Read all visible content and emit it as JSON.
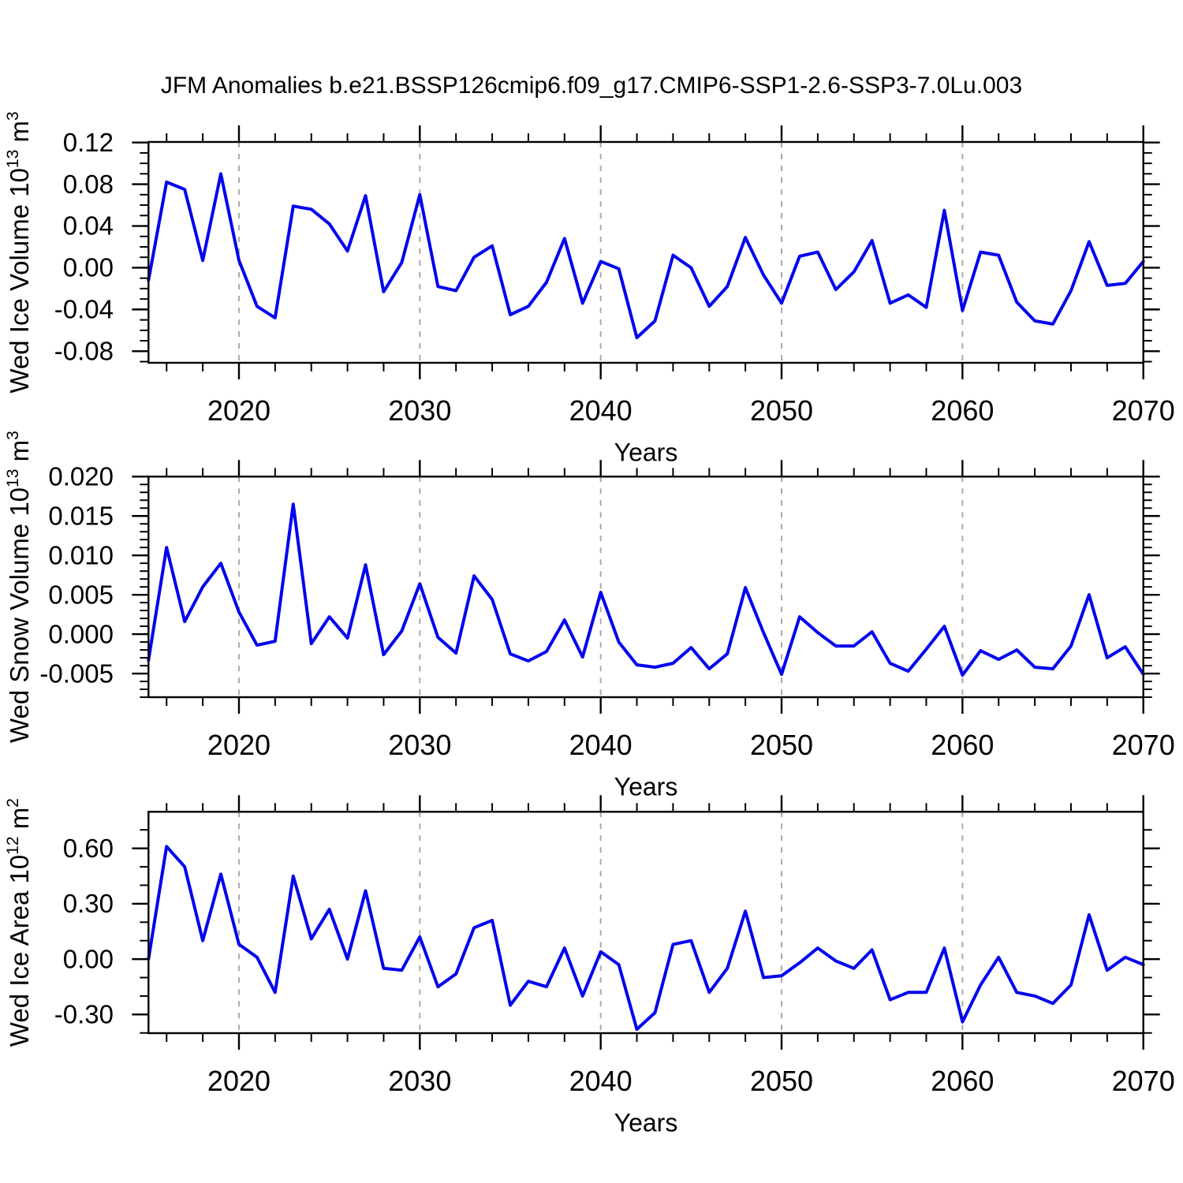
{
  "title": "JFM Anomalies b.e21.BSSP126cmip6.f09_g17.CMIP6-SSP1-2.6-SSP3-7.0Lu.003",
  "colors": {
    "line": "#0202ee",
    "grid": "#aaaaaa",
    "axis": "#000000",
    "text": "#000000",
    "background": "#ffffff"
  },
  "x_axis": {
    "label": "Years",
    "start": 2015,
    "end": 2070,
    "step": 1,
    "major_ticks": [
      2020,
      2030,
      2040,
      2050,
      2060,
      2070
    ],
    "minor_tick_step": 2,
    "decade_gridlines": [
      2020,
      2030,
      2040,
      2050,
      2060
    ]
  },
  "chart_data": [
    {
      "type": "line",
      "name": "wed-ice-volume",
      "ylabel_text": "Wed Ice Volume 10^13 m^3",
      "ylabel_parts": [
        {
          "t": "Wed Ice Volume 10",
          "sup": false
        },
        {
          "t": "13",
          "sup": true
        },
        {
          "t": " m",
          "sup": false
        },
        {
          "t": "3",
          "sup": true
        }
      ],
      "ylim": [
        -0.0911,
        0.1205
      ],
      "y_major_ticks": [
        {
          "v": 0.12,
          "label": "0.12"
        },
        {
          "v": 0.08,
          "label": "0.08"
        },
        {
          "v": 0.04,
          "label": "0.04"
        },
        {
          "v": 0.0,
          "label": "0.00"
        },
        {
          "v": -0.04,
          "label": "-0.04"
        },
        {
          "v": -0.08,
          "label": "-0.08"
        }
      ],
      "y_minor_step": 0.01,
      "x_years": {
        "start": 2015,
        "end": 2070,
        "step": 1
      },
      "values": [
        -0.012,
        0.082,
        0.075,
        0.007,
        0.09,
        0.007,
        -0.037,
        -0.048,
        0.059,
        0.056,
        0.042,
        0.016,
        0.069,
        -0.023,
        0.005,
        0.07,
        -0.018,
        -0.022,
        0.01,
        0.021,
        -0.045,
        -0.037,
        -0.014,
        0.028,
        -0.034,
        0.006,
        -0.001,
        -0.067,
        -0.051,
        0.012,
        0.0,
        -0.037,
        -0.018,
        0.029,
        -0.007,
        -0.034,
        0.011,
        0.015,
        -0.021,
        -0.004,
        0.026,
        -0.034,
        -0.026,
        -0.038,
        0.055,
        -0.041,
        0.015,
        0.012,
        -0.033,
        -0.051,
        -0.054,
        -0.022,
        0.025,
        -0.017,
        -0.015,
        0.006
      ]
    },
    {
      "type": "line",
      "name": "wed-snow-volume",
      "ylabel_text": "Wed Snow Volume 10^13 m^3",
      "ylabel_parts": [
        {
          "t": "Wed Snow Volume 10",
          "sup": false
        },
        {
          "t": "13",
          "sup": true
        },
        {
          "t": " m",
          "sup": false
        },
        {
          "t": "3",
          "sup": true
        }
      ],
      "ylim": [
        -0.008,
        0.02
      ],
      "y_major_ticks": [
        {
          "v": 0.02,
          "label": "0.020"
        },
        {
          "v": 0.015,
          "label": "0.015"
        },
        {
          "v": 0.01,
          "label": "0.010"
        },
        {
          "v": 0.005,
          "label": "0.005"
        },
        {
          "v": 0.0,
          "label": "0.000"
        },
        {
          "v": -0.005,
          "label": "-0.005"
        }
      ],
      "y_minor_step": 0.001,
      "x_years": {
        "start": 2015,
        "end": 2070,
        "step": 1
      },
      "values": [
        -0.0033,
        0.011,
        0.0016,
        0.006,
        0.009,
        0.0028,
        -0.0014,
        -0.0009,
        0.0165,
        -0.0012,
        0.0022,
        -0.0005,
        0.0088,
        -0.0026,
        0.0004,
        0.0064,
        -0.0004,
        -0.0024,
        0.0074,
        0.0044,
        -0.0025,
        -0.0034,
        -0.0022,
        0.0018,
        -0.0029,
        0.0053,
        -0.001,
        -0.0039,
        -0.0042,
        -0.0037,
        -0.0017,
        -0.0044,
        -0.0025,
        0.0059,
        0.0002,
        -0.0051,
        0.0022,
        0.0002,
        -0.0015,
        -0.0015,
        0.0003,
        -0.0037,
        -0.0047,
        -0.0019,
        0.001,
        -0.0052,
        -0.0021,
        -0.0032,
        -0.002,
        -0.0042,
        -0.0044,
        -0.0015,
        0.005,
        -0.003,
        -0.0016,
        -0.0051
      ]
    },
    {
      "type": "line",
      "name": "wed-ice-area",
      "ylabel_text": "Wed Ice Area 10^12 m^2",
      "ylabel_parts": [
        {
          "t": "Wed Ice Area 10",
          "sup": false
        },
        {
          "t": "12",
          "sup": true
        },
        {
          "t": " m",
          "sup": false
        },
        {
          "t": "2",
          "sup": true
        }
      ],
      "ylim": [
        -0.401,
        0.798
      ],
      "y_major_ticks": [
        {
          "v": 0.6,
          "label": "0.60"
        },
        {
          "v": 0.3,
          "label": "0.30"
        },
        {
          "v": 0.0,
          "label": "0.00"
        },
        {
          "v": -0.3,
          "label": "-0.30"
        }
      ],
      "y_minor_step": 0.1,
      "x_years": {
        "start": 2015,
        "end": 2070,
        "step": 1
      },
      "values": [
        0.0,
        0.61,
        0.5,
        0.1,
        0.46,
        0.08,
        0.01,
        -0.18,
        0.45,
        0.11,
        0.27,
        0.0,
        0.37,
        -0.05,
        -0.06,
        0.12,
        -0.15,
        -0.08,
        0.17,
        0.21,
        -0.25,
        -0.12,
        -0.15,
        0.06,
        -0.2,
        0.04,
        -0.03,
        -0.38,
        -0.29,
        0.08,
        0.1,
        -0.18,
        -0.05,
        0.26,
        -0.1,
        -0.09,
        -0.02,
        0.06,
        -0.01,
        -0.05,
        0.05,
        -0.22,
        -0.18,
        -0.18,
        0.06,
        -0.34,
        -0.14,
        0.01,
        -0.18,
        -0.2,
        -0.24,
        -0.14,
        0.24,
        -0.06,
        0.01,
        -0.03
      ]
    }
  ]
}
